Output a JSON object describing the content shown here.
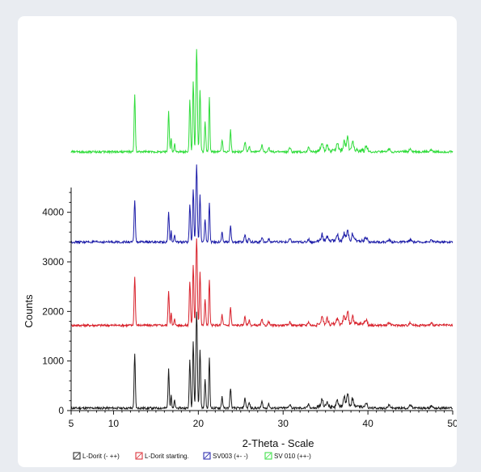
{
  "chart_data": {
    "type": "line",
    "title": "",
    "xlabel": "2-Theta - Scale",
    "ylabel": "Counts",
    "xlim": [
      5,
      50
    ],
    "ylim": [
      0,
      4500
    ],
    "xticks": [
      "5",
      "10",
      "20",
      "30",
      "40",
      "50"
    ],
    "xtick_values": [
      5,
      10,
      20,
      30,
      40,
      50
    ],
    "yticks": [
      "0",
      "1000",
      "2000",
      "3000",
      "4000"
    ],
    "ytick_values": [
      0,
      1000,
      2000,
      3000,
      4000
    ],
    "grid": false,
    "legend_position": "bottom",
    "peaks": [
      {
        "x": 12.5,
        "h": 1.0,
        "w": 0.1
      },
      {
        "x": 16.5,
        "h": 0.72,
        "w": 0.1
      },
      {
        "x": 16.8,
        "h": 0.25,
        "w": 0.08
      },
      {
        "x": 17.2,
        "h": 0.15,
        "w": 0.08
      },
      {
        "x": 19.0,
        "h": 0.9,
        "w": 0.1
      },
      {
        "x": 19.4,
        "h": 1.25,
        "w": 0.1
      },
      {
        "x": 19.8,
        "h": 1.8,
        "w": 0.12
      },
      {
        "x": 20.2,
        "h": 1.1,
        "w": 0.1
      },
      {
        "x": 20.8,
        "h": 0.55,
        "w": 0.1
      },
      {
        "x": 21.3,
        "h": 0.95,
        "w": 0.09
      },
      {
        "x": 22.8,
        "h": 0.22,
        "w": 0.1
      },
      {
        "x": 23.8,
        "h": 0.38,
        "w": 0.1
      },
      {
        "x": 25.5,
        "h": 0.18,
        "w": 0.12
      },
      {
        "x": 26.0,
        "h": 0.1,
        "w": 0.12
      },
      {
        "x": 27.5,
        "h": 0.12,
        "w": 0.12
      },
      {
        "x": 28.3,
        "h": 0.08,
        "w": 0.12
      },
      {
        "x": 30.8,
        "h": 0.07,
        "w": 0.15
      },
      {
        "x": 33.0,
        "h": 0.07,
        "w": 0.15
      },
      {
        "x": 34.6,
        "h": 0.14,
        "w": 0.15
      },
      {
        "x": 35.2,
        "h": 0.1,
        "w": 0.15
      },
      {
        "x": 36.4,
        "h": 0.12,
        "w": 0.15
      },
      {
        "x": 37.2,
        "h": 0.18,
        "w": 0.15
      },
      {
        "x": 37.6,
        "h": 0.26,
        "w": 0.15
      },
      {
        "x": 38.2,
        "h": 0.15,
        "w": 0.15
      },
      {
        "x": 39.8,
        "h": 0.08,
        "w": 0.15
      },
      {
        "x": 42.5,
        "h": 0.05,
        "w": 0.2
      },
      {
        "x": 45.0,
        "h": 0.05,
        "w": 0.2
      },
      {
        "x": 47.5,
        "h": 0.04,
        "w": 0.2
      }
    ],
    "series": [
      {
        "name": "L-Dorit (- ++)",
        "color": "#1a1a1a",
        "baseline": 50,
        "scale": 1150
      },
      {
        "name": "L-Dorit starting",
        "color": "#d8202a",
        "baseline": 1720,
        "scale": 1000
      },
      {
        "name": "SV003 (+- -)",
        "color": "#1c1ca8",
        "baseline": 3400,
        "scale": 840
      },
      {
        "name": "SV 010 (++-)",
        "color": "#2fdc3a",
        "baseline": 5220,
        "scale": 1080
      }
    ],
    "legend": [
      {
        "label": "L-Dorit (- ++)",
        "color": "#1a1a1a"
      },
      {
        "label": "L-Dorit starting.",
        "color": "#d8202a"
      },
      {
        "label": "SV003 (+- -)",
        "color": "#1c1ca8"
      },
      {
        "label": "SV 010 (++-)",
        "color": "#2fdc3a"
      }
    ]
  }
}
